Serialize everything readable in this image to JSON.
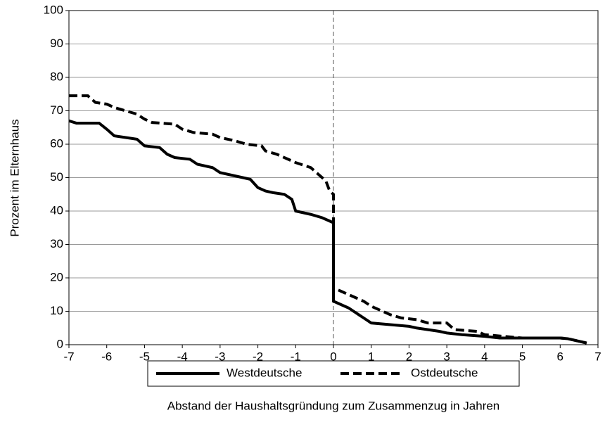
{
  "chart_data": {
    "type": "line",
    "xlabel": "Abstand der Haushaltsgründung zum Zusammenzug in Jahren",
    "ylabel": "Prozent im Elternhaus",
    "xlim": [
      -7,
      7
    ],
    "xticks": [
      -7,
      -6,
      -5,
      -4,
      -3,
      -2,
      -1,
      0,
      1,
      2,
      3,
      4,
      5,
      6,
      7
    ],
    "ylim": [
      0,
      100
    ],
    "yticks": [
      0,
      10,
      20,
      30,
      40,
      50,
      60,
      70,
      80,
      90,
      100
    ],
    "grid": true,
    "vline": 0,
    "legend": "bottom",
    "series": [
      {
        "name": "Westdeutsche",
        "color": "#000000",
        "dash": false,
        "x": [
          -7,
          -6.8,
          -6.2,
          -6,
          -5.8,
          -5.5,
          -5.2,
          -5,
          -4.6,
          -4.4,
          -4.2,
          -3.8,
          -3.6,
          -3.2,
          -3,
          -2.6,
          -2.2,
          -2,
          -1.8,
          -1.6,
          -1.3,
          -1.1,
          -1,
          -0.6,
          -0.3,
          -0.1,
          0,
          0,
          0.2,
          0.4,
          0.6,
          0.8,
          1,
          1.5,
          2,
          2.2,
          2.5,
          2.8,
          3,
          3.4,
          4,
          4.4,
          5,
          6,
          6.2,
          6.7
        ],
        "values": [
          67,
          66.3,
          66.3,
          64.5,
          62.5,
          62,
          61.5,
          59.5,
          59,
          57,
          56,
          55.5,
          54,
          53,
          51.5,
          50.5,
          49.5,
          47,
          46,
          45.5,
          45,
          43.5,
          40,
          39,
          38,
          37,
          36.5,
          13,
          12,
          11,
          9.5,
          8,
          6.5,
          6,
          5.5,
          5,
          4.5,
          4,
          3.5,
          3,
          2.5,
          2,
          2,
          2,
          1.8,
          0.5
        ]
      },
      {
        "name": "Ostdeutsche",
        "color": "#000000",
        "dash": true,
        "x": [
          -7,
          -6.5,
          -6.3,
          -6,
          -5.8,
          -5.5,
          -5.2,
          -5,
          -4.8,
          -4.2,
          -4,
          -3.7,
          -3.2,
          -3,
          -2.6,
          -2.3,
          -1.9,
          -1.8,
          -1.5,
          -1.2,
          -1,
          -0.6,
          -0.4,
          -0.2,
          -0.1,
          0,
          0,
          0.2,
          0.5,
          0.8,
          1,
          1.5,
          1.8,
          2.2,
          2.5,
          3,
          3.2,
          3.8,
          4,
          4.5,
          5,
          6,
          6.2,
          6.7
        ],
        "values": [
          74.5,
          74.5,
          72.5,
          72,
          71,
          70,
          69,
          67.5,
          66.5,
          66,
          64.5,
          63.5,
          63,
          62,
          61,
          60,
          59.5,
          58,
          57,
          55.5,
          54.5,
          53,
          51,
          49,
          46,
          45,
          17,
          16,
          14.5,
          13,
          11.5,
          9,
          8,
          7.5,
          6.5,
          6.5,
          4.5,
          4,
          3,
          2.5,
          2,
          2,
          1.8,
          0.5
        ]
      }
    ]
  }
}
